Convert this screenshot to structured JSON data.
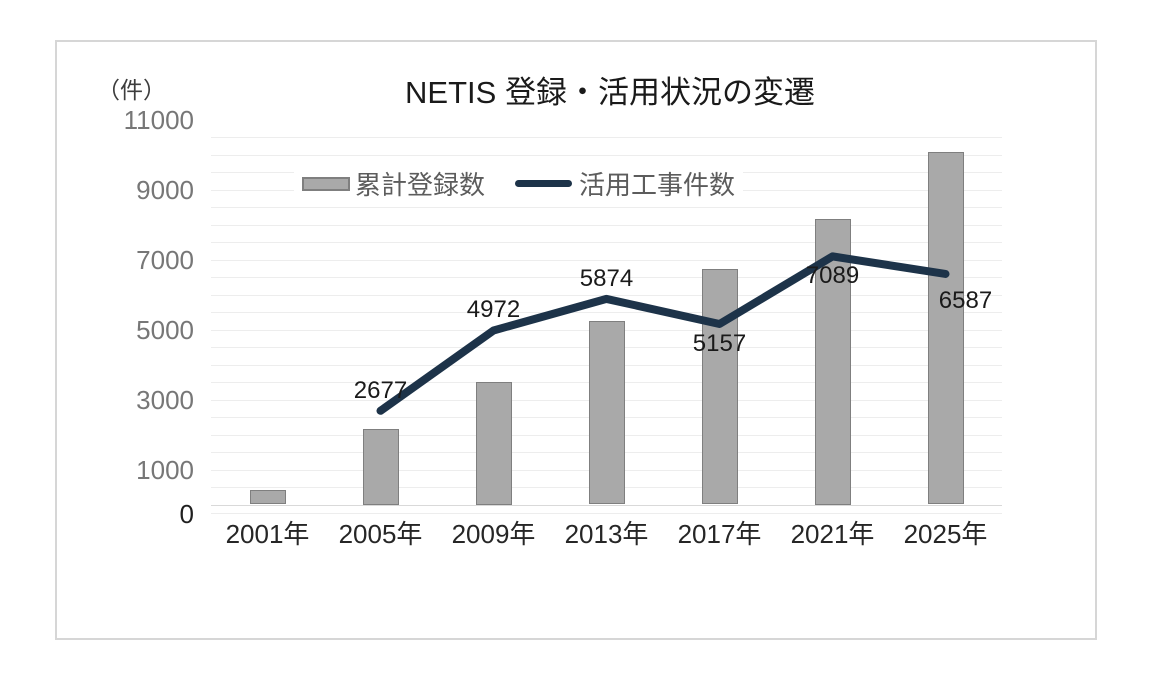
{
  "card": {
    "background": "#ffffff",
    "border_color": "#d6d6d6"
  },
  "chart_data": {
    "type": "combo_bar_line",
    "title": "NETIS 登録・活用状況の変遷",
    "unit_label": "（件）",
    "categories": [
      "2001年",
      "2005年",
      "2009年",
      "2013年",
      "2017年",
      "2021年",
      "2025年"
    ],
    "series": [
      {
        "name": "累計登録数",
        "type": "bar",
        "color": "#a9a9a9",
        "border_color": "#7f7f7f",
        "values": [
          420,
          2150,
          3500,
          5230,
          6720,
          8150,
          10070
        ]
      },
      {
        "name": "活用工事件数",
        "type": "line",
        "color": "#1d3349",
        "values": [
          null,
          2677,
          4972,
          5874,
          5157,
          7089,
          6587
        ],
        "data_labels": [
          "",
          "2677",
          "4972",
          "5874",
          "5157",
          "7089",
          "6587"
        ],
        "label_positions": [
          "",
          "above",
          "above",
          "above",
          "below",
          "below",
          "below-right"
        ]
      }
    ],
    "y_axis": {
      "tick_labels": [
        "11000",
        "9000",
        "7000",
        "5000",
        "3000",
        "1000",
        "0"
      ],
      "tick_values": [
        11000,
        9000,
        7000,
        5000,
        3000,
        1000,
        0
      ],
      "min": 0,
      "max": 11000,
      "gridline_step": 500,
      "grid_on": true,
      "tick_color": "#777777",
      "zero_tick_color": "#1f1f1f",
      "gridline_color": "#ededed",
      "zero_line_color": "#d9d9d9"
    },
    "x_axis": {
      "label_color": "#262626"
    },
    "legend": {
      "position": "top-center"
    }
  }
}
